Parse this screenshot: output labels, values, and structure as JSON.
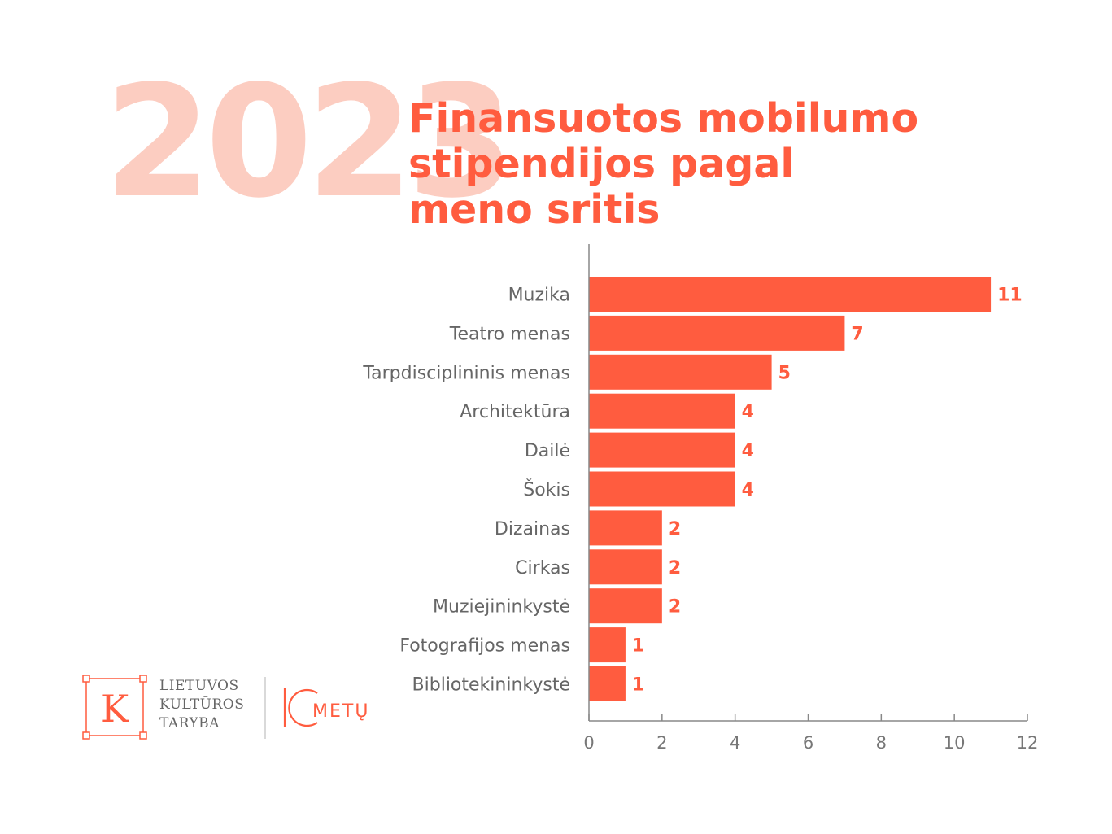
{
  "header": {
    "year": "2023",
    "title_lines": [
      "Finansuotos mobilumo",
      "stipendijos pagal",
      "meno sritis"
    ]
  },
  "chart_data": {
    "type": "bar",
    "orientation": "horizontal",
    "categories": [
      "Muzika",
      "Teatro menas",
      "Tarpdisciplininis menas",
      "Architektūra",
      "Dailė",
      "Šokis",
      "Dizainas",
      "Cirkas",
      "Muziejininkystė",
      "Fotografijos menas",
      "Bibliotekininkystė"
    ],
    "values": [
      11,
      7,
      5,
      4,
      4,
      4,
      2,
      2,
      2,
      1,
      1
    ],
    "xlim": [
      0,
      12
    ],
    "xticks": [
      0,
      2,
      4,
      6,
      8,
      10,
      12
    ],
    "data_labels": true,
    "grid": false,
    "bar_color": "#ff5c3f",
    "label_color": "#ff5c3f"
  },
  "logo": {
    "lines": [
      "LIETUVOS",
      "KULTŪROS",
      "TARYBA"
    ],
    "emblem_letter": "K",
    "anniversary_text": "METŲ",
    "color": "#ff5c3f"
  }
}
